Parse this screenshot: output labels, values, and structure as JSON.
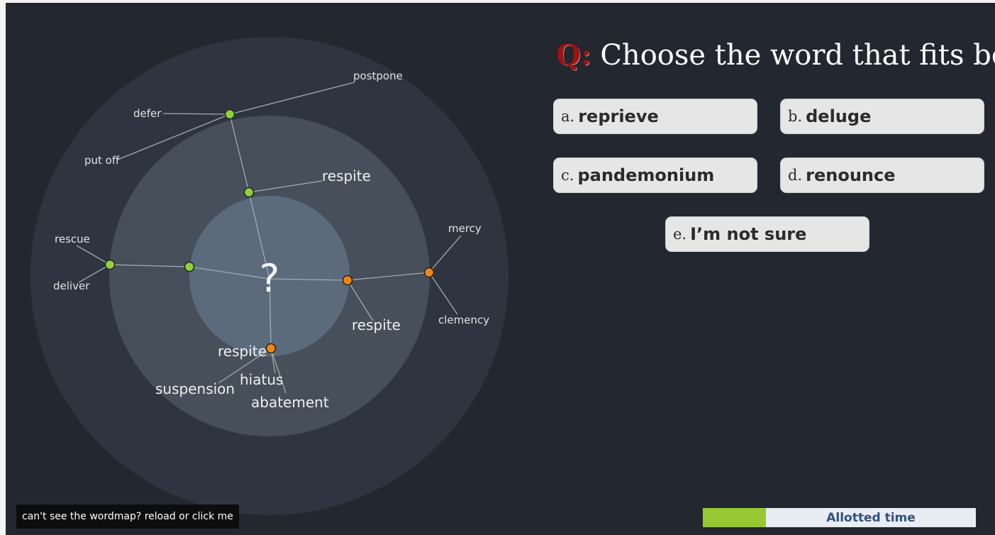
{
  "question": {
    "prefix": "Q:",
    "text": "Choose the word that fits best"
  },
  "answers": [
    {
      "letter": "a.",
      "word": "reprieve"
    },
    {
      "letter": "b.",
      "word": "deluge"
    },
    {
      "letter": "c.",
      "word": "pandemonium"
    },
    {
      "letter": "d.",
      "word": "renounce"
    },
    {
      "letter": "e.",
      "word": "I’m not sure"
    }
  ],
  "wordmap": {
    "center_symbol": "?",
    "words": {
      "postpone": "postpone",
      "defer": "defer",
      "put_off": "put off",
      "respite_top": "respite",
      "rescue": "rescue",
      "deliver": "deliver",
      "mercy": "mercy",
      "clemency": "clemency",
      "respite_right": "respite",
      "respite_bottom": "respite",
      "suspension": "suspension",
      "hiatus": "hiatus",
      "abatement": "abatement"
    },
    "colors": {
      "synonym_node": "#8fd13a",
      "related_node": "#f0850f"
    }
  },
  "reload_link": "can't see the wordmap? reload or click me",
  "timer": {
    "label": "Allotted time",
    "progress": 0.23,
    "color": "#97c832"
  }
}
